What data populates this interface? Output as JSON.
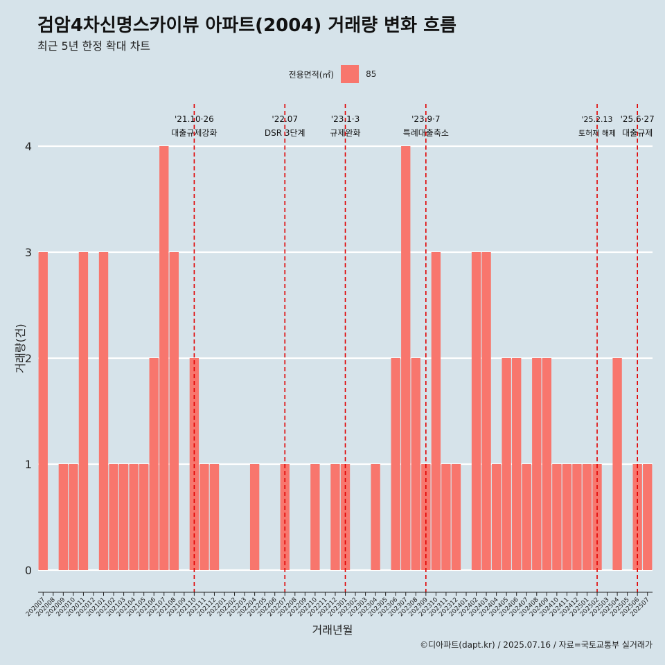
{
  "chart_data": {
    "type": "bar",
    "title": "검암4차신명스카이뷰 아파트(2004) 거래량 변화 흐름",
    "subtitle": "최근 5년 한정 확대 차트",
    "xlabel": "거래년월",
    "ylabel": "거래량(건)",
    "legend": {
      "title": "전용면적(㎡)",
      "position": "top",
      "color": "#f8766d",
      "entries": [
        "85"
      ]
    },
    "ylim": [
      0,
      4
    ],
    "yticks": [
      0,
      1,
      2,
      3,
      4
    ],
    "grid": true,
    "categories": [
      "202007",
      "202008",
      "202009",
      "202010",
      "202011",
      "202012",
      "202101",
      "202102",
      "202103",
      "202104",
      "202105",
      "202106",
      "202107",
      "202108",
      "202109",
      "202110",
      "202111",
      "202112",
      "202201",
      "202202",
      "202203",
      "202204",
      "202205",
      "202206",
      "202207",
      "202208",
      "202209",
      "202210",
      "202211",
      "202212",
      "202301",
      "202302",
      "202303",
      "202304",
      "202305",
      "202306",
      "202307",
      "202308",
      "202309",
      "202310",
      "202311",
      "202312",
      "202401",
      "202402",
      "202403",
      "202404",
      "202405",
      "202406",
      "202407",
      "202408",
      "202409",
      "202410",
      "202411",
      "202412",
      "202501",
      "202502",
      "202503",
      "202504",
      "202505",
      "202506",
      "202507"
    ],
    "series": [
      {
        "name": "85",
        "color": "#f8766d",
        "values": [
          3,
          0,
          1,
          1,
          3,
          0,
          3,
          1,
          1,
          1,
          1,
          2,
          4,
          3,
          0,
          2,
          1,
          1,
          0,
          0,
          0,
          1,
          0,
          0,
          1,
          0,
          0,
          1,
          0,
          1,
          1,
          0,
          0,
          1,
          0,
          2,
          4,
          2,
          1,
          3,
          1,
          1,
          0,
          3,
          3,
          1,
          2,
          2,
          1,
          2,
          2,
          1,
          1,
          1,
          1,
          1,
          0,
          2,
          0,
          1,
          1
        ]
      }
    ],
    "annotations": [
      {
        "at": "202110",
        "date": "'21.10·26",
        "label": "대출규제강화"
      },
      {
        "at": "202207",
        "date": "'22.07",
        "label": "DSR 3단계"
      },
      {
        "at": "202301",
        "date": "'23.1·3",
        "label": "규제완화"
      },
      {
        "at": "202309",
        "date": "'23.9·7",
        "label": "특례대출축소"
      },
      {
        "at": "202502",
        "date": "'25.2.13",
        "label": "토허제 해제"
      },
      {
        "at": "202506",
        "date": "'25.6·27",
        "label": "대출규제"
      }
    ],
    "annotation_line_color": "#e00000",
    "caption": "©디아파트(dapt.kr) / 2025.07.16 / 자료=국토교통부 실거래가"
  }
}
